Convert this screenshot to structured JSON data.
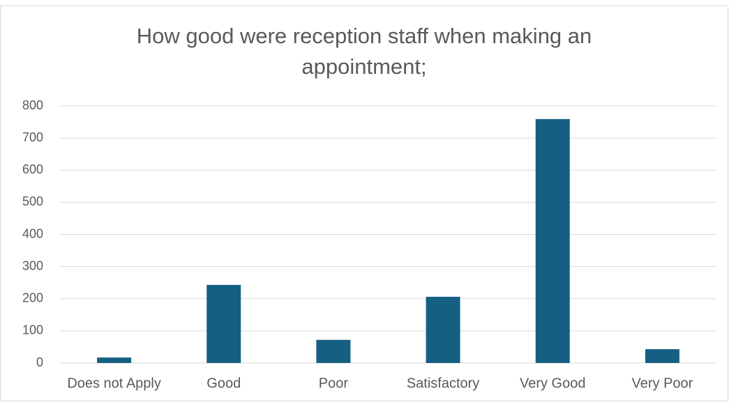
{
  "chart_data": {
    "type": "bar",
    "title": "How good were reception staff when making an appointment;",
    "categories": [
      "Does not Apply",
      "Good",
      "Poor",
      "Satisfactory",
      "Very Good",
      "Very Poor"
    ],
    "values": [
      17,
      243,
      72,
      206,
      759,
      43
    ],
    "color": "#156082",
    "ylim": [
      0,
      800
    ],
    "yticks": [
      0,
      100,
      200,
      300,
      400,
      500,
      600,
      700,
      800
    ],
    "grid": true
  }
}
